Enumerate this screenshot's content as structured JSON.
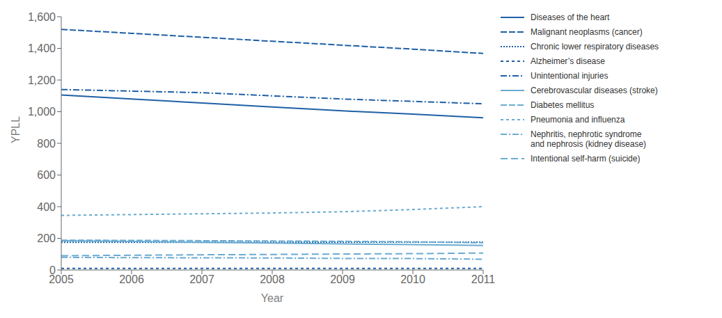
{
  "chart_data": {
    "type": "line",
    "x": [
      2005,
      2006,
      2007,
      2008,
      2009,
      2010,
      2011
    ],
    "xlabel": "Year",
    "ylabel": "YPLL",
    "xlim": [
      2005,
      2011
    ],
    "xticks": [
      2005,
      2006,
      2007,
      2008,
      2009,
      2010,
      2011
    ],
    "ylim": [
      0,
      1600
    ],
    "yticks": [
      0,
      200,
      400,
      600,
      800,
      {
        "value": 1000,
        "label": "1,000"
      },
      {
        "value": 1200,
        "label": "1,200"
      },
      {
        "value": 1400,
        "label": "1,400"
      },
      {
        "value": 1600,
        "label": "1,600"
      }
    ],
    "grid": false,
    "legend": "right",
    "series": [
      {
        "name": "Diseases of the heart",
        "color": "#1f5fa6",
        "line_style": "solid",
        "values": [
          1105,
          1080,
          1055,
          1030,
          1005,
          985,
          962
        ]
      },
      {
        "name": "Malignant neoplasms (cancer)",
        "color": "#1f5fa6",
        "line_style": "longdash",
        "values": [
          1520,
          1495,
          1470,
          1445,
          1420,
          1395,
          1368
        ]
      },
      {
        "name": "Chronic lower respiratory diseases",
        "color": "#1f5fa6",
        "line_style": "dotted",
        "values": [
          175,
          175,
          175,
          175,
          176,
          176,
          176
        ]
      },
      {
        "name": "Alzheimer’s disease",
        "color": "#1f5fa6",
        "line_style": "dashed",
        "values": [
          10,
          10,
          10,
          10,
          10,
          10,
          10
        ]
      },
      {
        "name": "Unintentional injuries",
        "color": "#1f5fa6",
        "line_style": "dashdot",
        "values": [
          1140,
          1130,
          1120,
          1100,
          1080,
          1065,
          1050
        ]
      },
      {
        "name": "Cerebrovascular diseases (stroke)",
        "color": "#6aabd2",
        "line_style": "solid",
        "values": [
          185,
          180,
          175,
          170,
          165,
          160,
          155
        ]
      },
      {
        "name": "Diabetes mellitus",
        "color": "#6aabd2",
        "line_style": "longdash",
        "values": [
          188,
          187,
          185,
          183,
          181,
          178,
          172
        ]
      },
      {
        "name": "Pneumonia and influenza",
        "color": "#6aabd2",
        "line_style": "dashed",
        "values": [
          345,
          350,
          355,
          360,
          368,
          382,
          400
        ]
      },
      {
        "name": "Nephritis, nephrotic syndrome\nand nephrosis (kidney disease)",
        "color": "#6aabd2",
        "line_style": "dashdot",
        "values": [
          80,
          78,
          77,
          76,
          73,
          72,
          68
        ]
      },
      {
        "name": "Intentional self-harm (suicide)",
        "color": "#6aabd2",
        "line_style": "loosedash",
        "values": [
          90,
          93,
          96,
          98,
          101,
          103,
          107
        ]
      }
    ]
  }
}
